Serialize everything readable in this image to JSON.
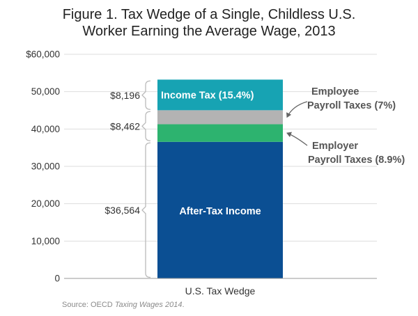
{
  "title_lines": [
    "Figure 1. Tax Wedge of a Single, Childless U.S.",
    "Worker Earning the Average Wage, 2013"
  ],
  "source_prefix": "Source: OECD ",
  "source_italic": "Taxing Wages 2014",
  "source_suffix": ".",
  "chart_data": {
    "type": "bar",
    "stacked": true,
    "categories": [
      "U.S. Tax Wedge"
    ],
    "ylim": [
      0,
      60000
    ],
    "ytick_values": [
      0,
      10000,
      20000,
      30000,
      40000,
      50000,
      60000
    ],
    "ytick_labels": [
      "0",
      "10,000",
      "20,000",
      "30,000",
      "40,000",
      "50,000",
      "$60,000"
    ],
    "grid": true,
    "series": [
      {
        "name": "After-Tax Income",
        "values": [
          36564
        ],
        "color": "#0b4f93",
        "inside_label": "After-Tax Income"
      },
      {
        "name": "Employer Payroll Taxes (8.9%)",
        "values": [
          4720
        ],
        "color": "#2db36f"
      },
      {
        "name": "Employee Payroll Taxes (7%)",
        "values": [
          3742
        ],
        "color": "#b3b3b3"
      },
      {
        "name": "Income Tax (15.4%)",
        "values": [
          8196
        ],
        "color": "#17a3b3",
        "inside_label": "Income Tax (15.4%)"
      }
    ],
    "annotations": [
      {
        "lines": [
          "Employee",
          "Payroll Taxes (7%)"
        ],
        "series": "Employee Payroll Taxes (7%)"
      },
      {
        "lines": [
          "Employer",
          "Payroll Taxes (8.9%)"
        ],
        "series": "Employer Payroll Taxes (8.9%)"
      }
    ],
    "brackets": [
      {
        "label": "$8,196",
        "from": 44952,
        "to": 53148
      },
      {
        "label": "$8,462",
        "from": 36564,
        "to": 44952
      },
      {
        "label": "$36,564",
        "from": 0,
        "to": 36564
      }
    ],
    "colors": {
      "axis": "#999999",
      "grid": "#dddddd",
      "bracket": "#bbbbbb",
      "arrow": "#666666"
    }
  }
}
